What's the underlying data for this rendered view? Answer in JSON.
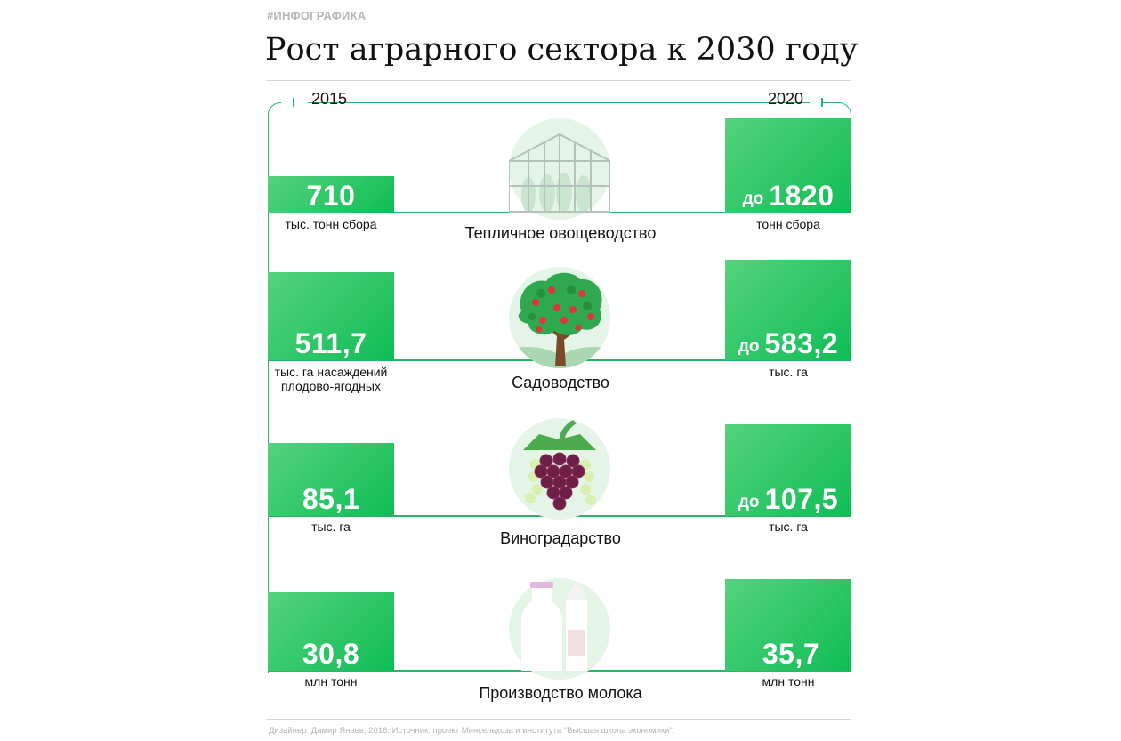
{
  "hashtag": "#ИНФОГРАФИКА",
  "title": "Рост аграрного сектора к 2030 году",
  "years": {
    "left": "2015",
    "right": "2020"
  },
  "rows": [
    {
      "sector": "Тепличное овощеводство",
      "icon": "greenhouse-icon",
      "left_value": "710",
      "left_label": "тыс. тонн сбора",
      "right_prefix": "до",
      "right_value": "1820",
      "right_label": "тонн сбора"
    },
    {
      "sector": "Садоводство",
      "icon": "apple-tree-icon",
      "left_value": "511,7",
      "left_label": "тыс. га насаждений плодово-ягодных",
      "right_prefix": "до",
      "right_value": "583,2",
      "right_label": "тыс. га"
    },
    {
      "sector": "Виноградарство",
      "icon": "grapes-icon",
      "left_value": "85,1",
      "left_label": "тыс. га",
      "right_prefix": "до",
      "right_value": "107,5",
      "right_label": "тыс. га"
    },
    {
      "sector": "Производство молока",
      "icon": "milk-icon",
      "left_value": "30,8",
      "left_label": "млн тонн",
      "right_prefix": "",
      "right_value": "35,7",
      "right_label": "млн тонн"
    }
  ],
  "footer": "Дизайнер: Дамир Янаев, 2016. Источник: проект Минсельхоза и института \"Высшая школа экономики\".",
  "colors": {
    "accent": "#29b765",
    "box_light": "#55d27f",
    "box_dark": "#0fbd55",
    "circle": "#e4f5e8"
  }
}
